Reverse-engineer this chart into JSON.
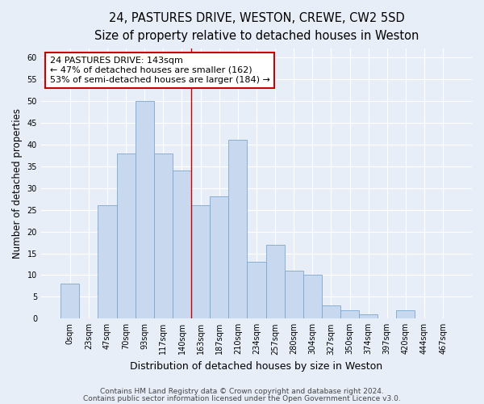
{
  "title_line1": "24, PASTURES DRIVE, WESTON, CREWE, CW2 5SD",
  "title_line2": "Size of property relative to detached houses in Weston",
  "xlabel": "Distribution of detached houses by size in Weston",
  "ylabel": "Number of detached properties",
  "bar_values": [
    8,
    0,
    26,
    38,
    50,
    38,
    34,
    26,
    28,
    41,
    13,
    17,
    11,
    10,
    3,
    2,
    1,
    0,
    2,
    0,
    0
  ],
  "bar_labels": [
    "0sqm",
    "23sqm",
    "47sqm",
    "70sqm",
    "93sqm",
    "117sqm",
    "140sqm",
    "163sqm",
    "187sqm",
    "210sqm",
    "234sqm",
    "257sqm",
    "280sqm",
    "304sqm",
    "327sqm",
    "350sqm",
    "374sqm",
    "397sqm",
    "420sqm",
    "444sqm",
    "467sqm"
  ],
  "bar_color": "#c8d8ee",
  "bar_edge_color": "#7aa8d0",
  "bar_width": 1.0,
  "ylim": [
    0,
    62
  ],
  "yticks": [
    0,
    5,
    10,
    15,
    20,
    25,
    30,
    35,
    40,
    45,
    50,
    55,
    60
  ],
  "vline_x": 6.5,
  "vline_color": "#cc0000",
  "annotation_text": "24 PASTURES DRIVE: 143sqm\n← 47% of detached houses are smaller (162)\n53% of semi-detached houses are larger (184) →",
  "annotation_box_color": "#ffffff",
  "annotation_box_edge": "#cc0000",
  "footer_line1": "Contains HM Land Registry data © Crown copyright and database right 2024.",
  "footer_line2": "Contains public sector information licensed under the Open Government Licence v3.0.",
  "background_color": "#e8eef8",
  "plot_bg_color": "#e8eef8",
  "grid_color": "#ffffff",
  "title_fontsize": 10.5,
  "subtitle_fontsize": 9.5,
  "ylabel_fontsize": 8.5,
  "xlabel_fontsize": 9,
  "tick_fontsize": 7,
  "footer_fontsize": 6.5,
  "annot_fontsize": 8
}
